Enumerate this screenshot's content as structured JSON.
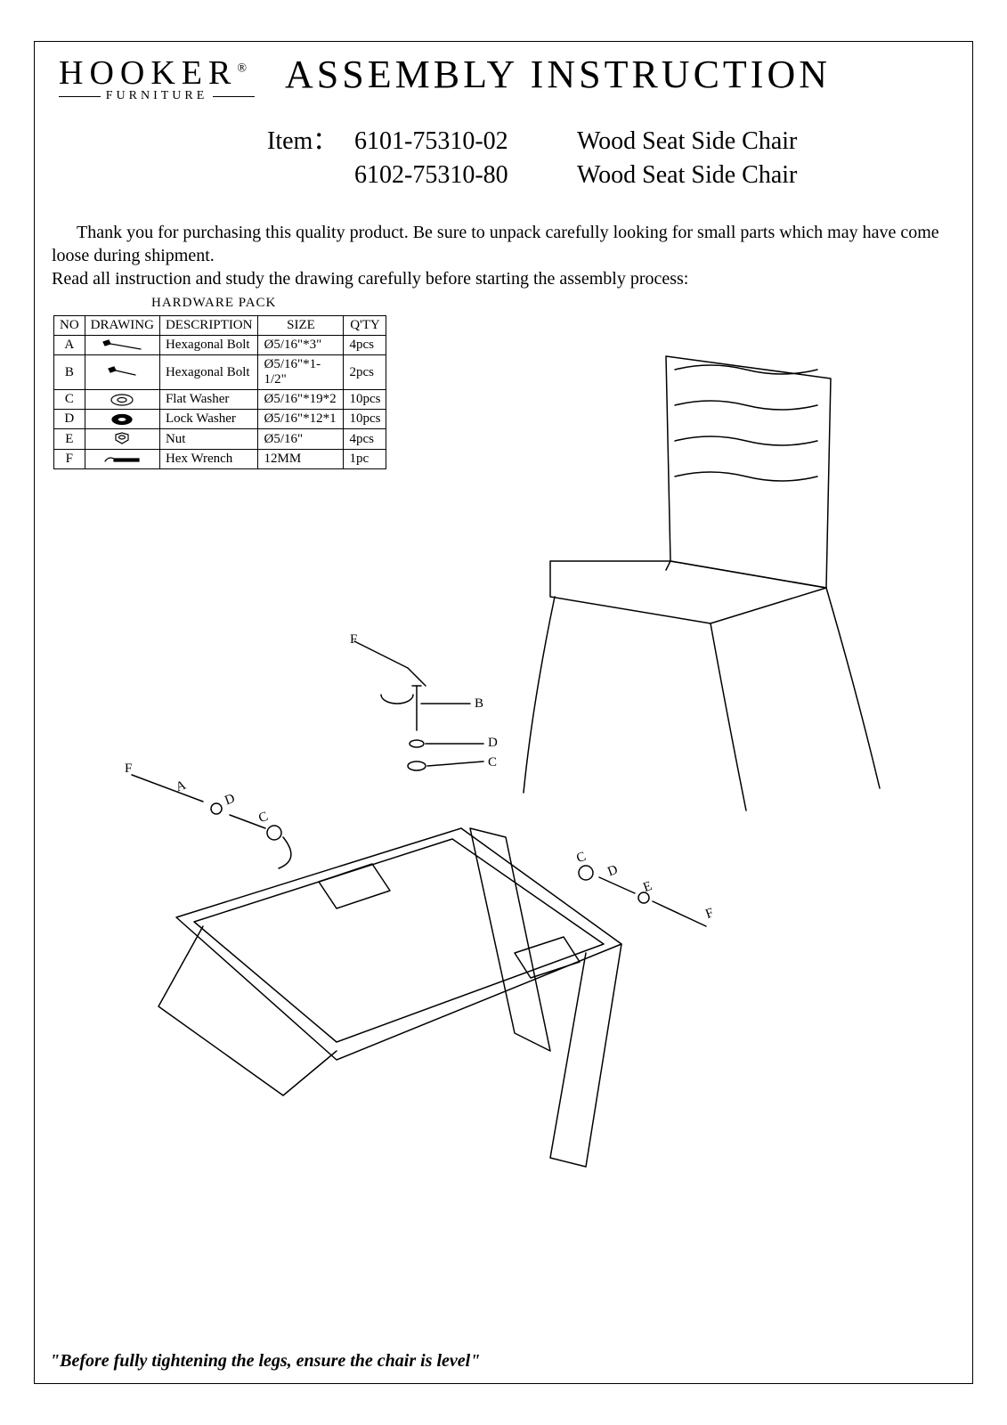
{
  "logo": {
    "main": "HOOKER",
    "reg": "®",
    "sub": "FURNITURE"
  },
  "title": "ASSEMBLY INSTRUCTION",
  "item_label": "Item：",
  "items": [
    {
      "code": "6101-75310-02",
      "desc": "Wood Seat Side Chair"
    },
    {
      "code": "6102-75310-80",
      "desc": "Wood Seat Side Chair"
    }
  ],
  "paragraph": {
    "p1": "Thank you for purchasing this quality product. Be sure to unpack carefully looking for small parts which may have come loose during shipment.",
    "p2": "Read all instruction and study the drawing carefully before starting the assembly process:"
  },
  "hardware_pack": {
    "title": "HARDWARE PACK",
    "columns": [
      "NO",
      "DRAWING",
      "DESCRIPTION",
      "SIZE",
      "Q'TY"
    ],
    "rows": [
      {
        "no": "A",
        "icon": "bolt-long",
        "desc": "Hexagonal Bolt",
        "size": "Ø5/16\"*3\"",
        "qty": "4pcs"
      },
      {
        "no": "B",
        "icon": "bolt-short",
        "desc": "Hexagonal Bolt",
        "size": "Ø5/16\"*1-1/2\"",
        "qty": "2pcs"
      },
      {
        "no": "C",
        "icon": "flat-washer",
        "desc": "Flat Washer",
        "size": "Ø5/16\"*19*2",
        "qty": "10pcs"
      },
      {
        "no": "D",
        "icon": "lock-washer",
        "desc": "Lock Washer",
        "size": "Ø5/16\"*12*1",
        "qty": "10pcs"
      },
      {
        "no": "E",
        "icon": "nut",
        "desc": "Nut",
        "size": "Ø5/16\"",
        "qty": "4pcs"
      },
      {
        "no": "F",
        "icon": "wrench",
        "desc": "Hex Wrench",
        "size": "12MM",
        "qty": "1pc"
      }
    ]
  },
  "diagram_annotations": {
    "F": "F",
    "B": "B",
    "D": "D",
    "C": "C",
    "A": "A",
    "E": "E"
  },
  "footer": "\"Before fully tightening the legs, ensure the chair is level\"",
  "colors": {
    "ink": "#000000",
    "bg": "#ffffff"
  }
}
